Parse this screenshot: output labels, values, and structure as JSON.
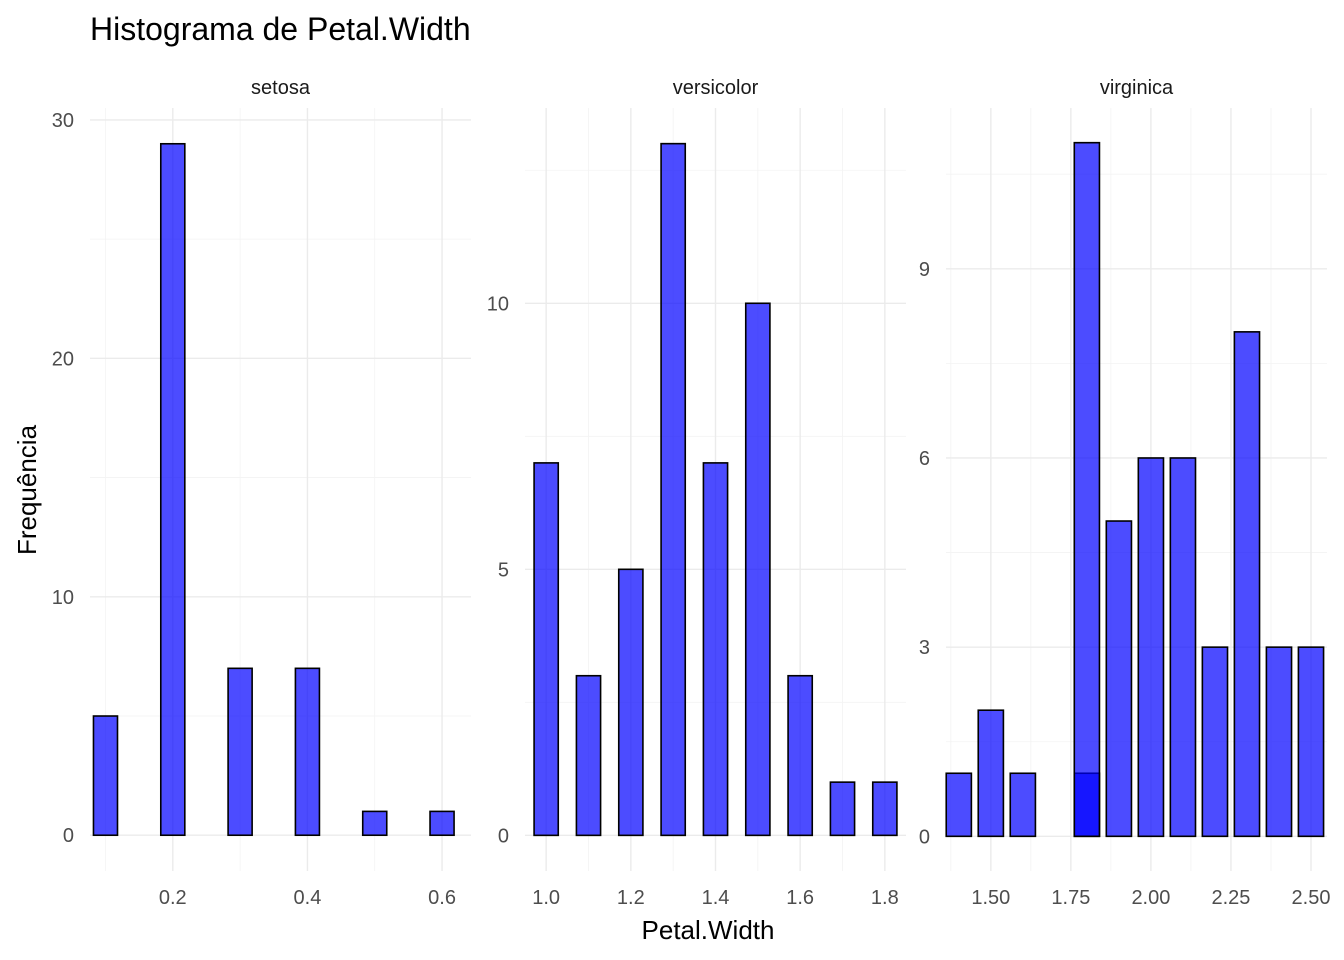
{
  "chart_data": {
    "type": "bar",
    "title": "Histograma de Petal.Width",
    "xlabel": "Petal.Width",
    "ylabel": "Frequência",
    "fill_color": "#0000FF",
    "fill_opacity": 0.7,
    "outline_color": "#000000",
    "grid": true,
    "facets": [
      {
        "name": "setosa",
        "xlim": [
          0.077,
          0.643
        ],
        "ylim": [
          -1.5,
          30.5
        ],
        "x_ticks": [
          {
            "value": 0.2,
            "label": "0.2"
          },
          {
            "value": 0.4,
            "label": "0.4"
          },
          {
            "value": 0.6,
            "label": "0.6"
          }
        ],
        "y_ticks": [
          {
            "value": 0,
            "label": "0"
          },
          {
            "value": 10,
            "label": "10"
          },
          {
            "value": 20,
            "label": "20"
          },
          {
            "value": 30,
            "label": "30"
          }
        ],
        "bar_width": 0.0357,
        "bars": [
          {
            "x": 0.1,
            "y": 5
          },
          {
            "x": 0.2,
            "y": 29
          },
          {
            "x": 0.3,
            "y": 7
          },
          {
            "x": 0.4,
            "y": 7
          },
          {
            "x": 0.5,
            "y": 1
          },
          {
            "x": 0.6,
            "y": 1
          }
        ]
      },
      {
        "name": "versicolor",
        "xlim": [
          0.95,
          1.85
        ],
        "ylim": [
          -0.67,
          13.67
        ],
        "x_ticks": [
          {
            "value": 1.0,
            "label": "1.0"
          },
          {
            "value": 1.2,
            "label": "1.2"
          },
          {
            "value": 1.4,
            "label": "1.4"
          },
          {
            "value": 1.6,
            "label": "1.6"
          },
          {
            "value": 1.8,
            "label": "1.8"
          }
        ],
        "y_ticks": [
          {
            "value": 0,
            "label": "0"
          },
          {
            "value": 5,
            "label": "5"
          },
          {
            "value": 10,
            "label": "10"
          }
        ],
        "bar_width": 0.0571,
        "bars": [
          {
            "x": 1.0,
            "y": 7
          },
          {
            "x": 1.1,
            "y": 3
          },
          {
            "x": 1.2,
            "y": 5
          },
          {
            "x": 1.3,
            "y": 13
          },
          {
            "x": 1.4,
            "y": 7
          },
          {
            "x": 1.5,
            "y": 10
          },
          {
            "x": 1.6,
            "y": 3
          },
          {
            "x": 1.7,
            "y": 1
          },
          {
            "x": 1.8,
            "y": 1
          }
        ]
      },
      {
        "name": "virginica",
        "xlim": [
          1.36,
          2.55
        ],
        "ylim": [
          -0.55,
          11.55
        ],
        "x_ticks": [
          {
            "value": 1.5,
            "label": "1.50"
          },
          {
            "value": 1.75,
            "label": "1.75"
          },
          {
            "value": 2.0,
            "label": "2.00"
          },
          {
            "value": 2.25,
            "label": "2.25"
          },
          {
            "value": 2.5,
            "label": "2.50"
          }
        ],
        "y_ticks": [
          {
            "value": 0,
            "label": "0"
          },
          {
            "value": 3,
            "label": "3"
          },
          {
            "value": 6,
            "label": "6"
          },
          {
            "value": 9,
            "label": "9"
          }
        ],
        "bar_width": 0.0786,
        "bars": [
          {
            "x": 1.4,
            "y": 1
          },
          {
            "x": 1.5,
            "y": 2
          },
          {
            "x": 1.6,
            "y": 1
          },
          {
            "x": 1.7,
            "y": 0
          },
          {
            "x": 1.8,
            "y": 1
          },
          {
            "x": 1.8,
            "y": 11
          },
          {
            "x": 1.9,
            "y": 5
          },
          {
            "x": 2.0,
            "y": 6
          },
          {
            "x": 2.1,
            "y": 0
          },
          {
            "x": 2.1,
            "y": 6
          },
          {
            "x": 2.2,
            "y": 3
          },
          {
            "x": 2.3,
            "y": 8
          },
          {
            "x": 2.4,
            "y": 0
          },
          {
            "x": 2.4,
            "y": 3
          },
          {
            "x": 2.5,
            "y": 3
          }
        ]
      }
    ]
  }
}
